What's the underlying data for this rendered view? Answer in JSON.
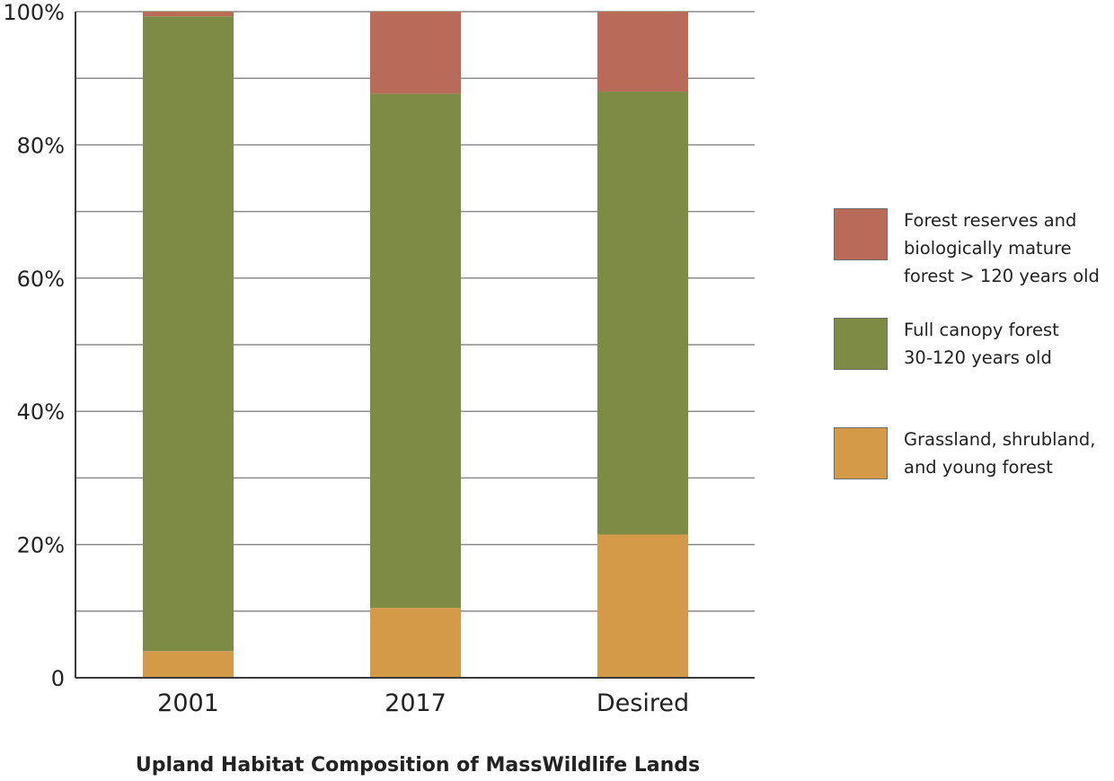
{
  "chart_data": {
    "type": "bar",
    "stacked": true,
    "title": "Upland Habitat Composition of MassWildlife Lands",
    "categories": [
      "2001",
      "2017",
      "Desired"
    ],
    "series": [
      {
        "name": "Grassland, shrubland,\nand young forest",
        "color": "#d49a48",
        "values": [
          4,
          10.5,
          21.5
        ]
      },
      {
        "name": "Full canopy forest\n30-120 years old",
        "color": "#7d8b45",
        "values": [
          95.3,
          77.2,
          66.5
        ]
      },
      {
        "name": "Forest reserves and\nbiologically mature\nforest > 120 years old",
        "color": "#b96b57",
        "values": [
          0.7,
          12.3,
          12
        ]
      }
    ],
    "ylim": [
      0,
      100
    ],
    "yticks": [
      {
        "value": 0,
        "label": "0"
      },
      {
        "value": 20,
        "label": "20%"
      },
      {
        "value": 40,
        "label": "40%"
      },
      {
        "value": 60,
        "label": "60%"
      },
      {
        "value": 80,
        "label": "80%"
      },
      {
        "value": 100,
        "label": "100%"
      }
    ],
    "minor_gridlines": [
      10,
      30,
      50,
      70,
      90
    ],
    "grid": true,
    "legend_position": "right",
    "legend_order": [
      "Forest reserves and\nbiologically mature\nforest > 120 years old",
      "Full canopy forest\n30-120 years old",
      "Grassland, shrubland,\nand young forest"
    ]
  }
}
